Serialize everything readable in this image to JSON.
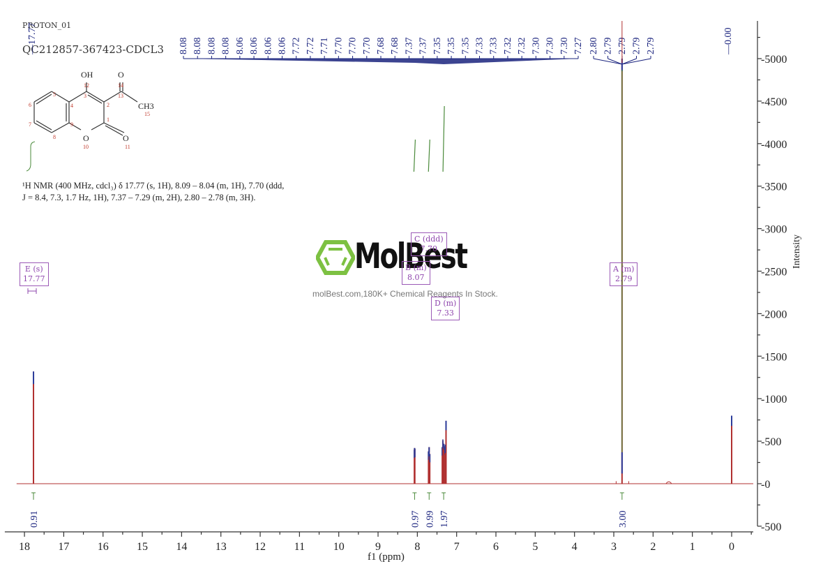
{
  "header": {
    "experiment": "PROTON_01",
    "sample_id": "QC212857-367423-CDCL3"
  },
  "nmr_description": "¹H NMR (400 MHz, cdcl₃) δ 17.77 (s, 1H), 8.09 – 8.04 (m, 1H), 7.70 (ddd, J = 8.4, 7.3, 1.7 Hz, 1H), 7.37 – 7.29 (m, 2H), 2.80 – 2.78 (m, 3H).",
  "structure": {
    "name": "3-acetyl-4-hydroxycoumarin",
    "labels": {
      "oh": "OH",
      "o14": "O",
      "ch3": "CH3",
      "o10": "O",
      "o11": "O"
    },
    "atom_numbers": [
      "1",
      "2",
      "3",
      "4",
      "5",
      "6",
      "7",
      "8",
      "9",
      "10",
      "11",
      "12",
      "13",
      "14",
      "15"
    ]
  },
  "watermark": {
    "brand": "MolBest",
    "tagline": "molBest.com,180K+ Chemical Reagents In Stock."
  },
  "multiplets": [
    {
      "id": "E",
      "type": "(s)",
      "shift": "17.77"
    },
    {
      "id": "B",
      "type": "(m)",
      "shift": "8.07"
    },
    {
      "id": "C",
      "type": "(ddd)",
      "shift": "7.70"
    },
    {
      "id": "D",
      "type": "(m)",
      "shift": "7.33"
    },
    {
      "id": "A",
      "type": "(m)",
      "shift": "2.79"
    }
  ],
  "chart_data": {
    "type": "line",
    "title": "QC212857-367423-CDCL3",
    "xlabel": "f1 (ppm)",
    "ylabel": "Intensity",
    "xlim": [
      18.5,
      -0.55
    ],
    "ylim": [
      -500,
      5400
    ],
    "x_ticks": [
      18,
      17,
      16,
      15,
      14,
      13,
      12,
      11,
      10,
      9,
      8,
      7,
      6,
      5,
      4,
      3,
      2,
      1,
      0
    ],
    "y_ticks": [
      -500,
      0,
      500,
      1000,
      1500,
      2000,
      2500,
      3000,
      3500,
      4000,
      4500,
      5000
    ],
    "grid": false,
    "peak_labels_top": [
      "17.77",
      "8.08",
      "8.08",
      "8.08",
      "8.08",
      "8.06",
      "8.06",
      "8.06",
      "8.06",
      "7.72",
      "7.72",
      "7.71",
      "7.70",
      "7.70",
      "7.70",
      "7.68",
      "7.68",
      "7.37",
      "7.37",
      "7.35",
      "7.35",
      "7.35",
      "7.33",
      "7.33",
      "7.32",
      "7.32",
      "7.30",
      "7.30",
      "7.30",
      "7.27",
      "2.80",
      "2.79",
      "2.79",
      "2.79",
      "2.79",
      "-0.00"
    ],
    "peaks": [
      {
        "ppm": 17.77,
        "intensity": 1320
      },
      {
        "ppm": 8.07,
        "intensity": 420
      },
      {
        "ppm": 7.7,
        "intensity": 430
      },
      {
        "ppm": 7.35,
        "intensity": 500
      },
      {
        "ppm": 7.33,
        "intensity": 470
      },
      {
        "ppm": 7.27,
        "intensity": 740
      },
      {
        "ppm": 2.79,
        "intensity": 5000
      },
      {
        "ppm": 1.6,
        "intensity": 45
      },
      {
        "ppm": 0.0,
        "intensity": 800
      }
    ],
    "integrals": [
      {
        "ppm": 17.77,
        "value": "0.91"
      },
      {
        "ppm": 8.07,
        "value": "0.97"
      },
      {
        "ppm": 7.7,
        "value": "0.99"
      },
      {
        "ppm": 7.33,
        "value": "1.97"
      },
      {
        "ppm": 2.79,
        "value": "3.00"
      }
    ]
  }
}
